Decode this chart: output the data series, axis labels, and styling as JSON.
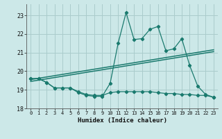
{
  "xlabel": "Humidex (Indice chaleur)",
  "background_color": "#cce8e8",
  "grid_color": "#aacccc",
  "line_color": "#1a7a6e",
  "xlim": [
    -0.5,
    23.5
  ],
  "ylim": [
    18.0,
    23.6
  ],
  "xticks": [
    0,
    1,
    2,
    3,
    4,
    5,
    6,
    7,
    8,
    9,
    10,
    11,
    12,
    13,
    14,
    15,
    16,
    17,
    18,
    19,
    20,
    21,
    22,
    23
  ],
  "yticks": [
    18,
    19,
    20,
    21,
    22,
    23
  ],
  "line1_x": [
    0,
    1,
    2,
    3,
    4,
    5,
    6,
    7,
    8,
    9,
    10,
    11,
    12,
    13,
    14,
    15,
    16,
    17,
    18,
    19,
    20,
    21,
    22,
    23
  ],
  "line1_y": [
    19.6,
    19.6,
    19.4,
    19.1,
    19.1,
    19.1,
    18.85,
    18.7,
    18.65,
    18.65,
    19.35,
    21.5,
    23.15,
    21.7,
    21.75,
    22.25,
    22.4,
    21.1,
    21.2,
    21.75,
    20.3,
    19.2,
    18.75,
    18.6
  ],
  "line2_x": [
    0,
    1,
    2,
    3,
    4,
    5,
    6,
    7,
    8,
    9,
    10,
    11,
    12,
    13,
    14,
    15,
    16,
    17,
    18,
    19,
    20,
    21,
    22,
    23
  ],
  "line2_y": [
    19.6,
    19.6,
    19.4,
    19.1,
    19.1,
    19.1,
    18.9,
    18.75,
    18.7,
    18.7,
    18.85,
    18.9,
    18.9,
    18.9,
    18.9,
    18.9,
    18.85,
    18.8,
    18.8,
    18.75,
    18.75,
    18.7,
    18.7,
    18.6
  ],
  "trend1_x": [
    0,
    23
  ],
  "trend1_y": [
    19.55,
    21.15
  ],
  "trend2_x": [
    0,
    23
  ],
  "trend2_y": [
    19.45,
    21.05
  ]
}
